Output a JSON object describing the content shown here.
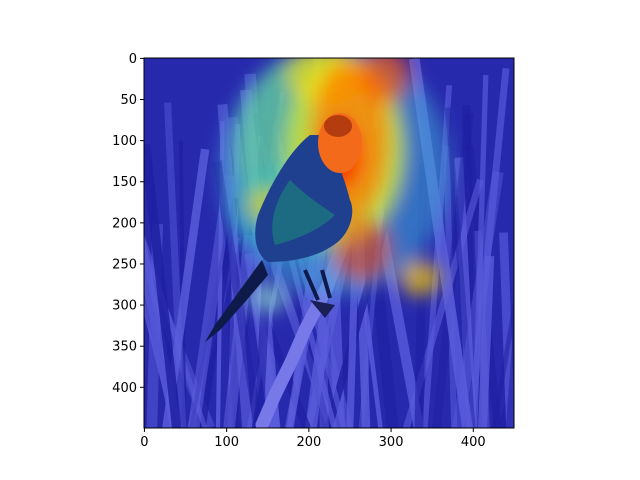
{
  "figure": {
    "background": "#ffffff",
    "image": {
      "description_kind": "heatmap-overlay-on-photo",
      "base_photo": {
        "background_color": "#3d3f82",
        "grass_color": "#8a8fc9",
        "grass_dark_color": "#2f3170",
        "branch_color": "#b8b9de",
        "bird_body_color": "#1f3f8f",
        "bird_dark_color": "#0d1a4a",
        "bird_head_color": "#f26a1a"
      },
      "colormap": "jet",
      "colormap_stops": [
        "#00007f",
        "#0000ff",
        "#00ffff",
        "#7fff7f",
        "#ffff00",
        "#ff0000",
        "#7f0000"
      ],
      "overlay_opacity": 0.5
    },
    "axes": {
      "x_ticks": [
        {
          "value": 0,
          "label": "0"
        },
        {
          "value": 100,
          "label": "100"
        },
        {
          "value": 200,
          "label": "200"
        },
        {
          "value": 300,
          "label": "300"
        },
        {
          "value": 400,
          "label": "400"
        }
      ],
      "y_ticks": [
        {
          "value": 0,
          "label": "0"
        },
        {
          "value": 50,
          "label": "50"
        },
        {
          "value": 100,
          "label": "100"
        },
        {
          "value": 150,
          "label": "150"
        },
        {
          "value": 200,
          "label": "200"
        },
        {
          "value": 250,
          "label": "250"
        },
        {
          "value": 300,
          "label": "300"
        },
        {
          "value": 350,
          "label": "350"
        },
        {
          "value": 400,
          "label": "400"
        }
      ],
      "x_range": [
        -0.5,
        449.5
      ],
      "y_range": [
        449.5,
        -0.5
      ]
    }
  }
}
